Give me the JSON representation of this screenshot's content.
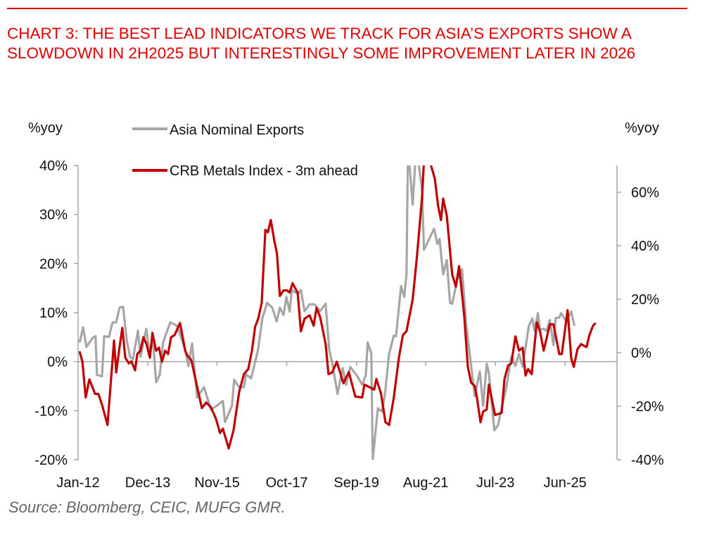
{
  "chart_data": {
    "type": "line",
    "title": "CHART 3: THE BEST LEAD INDICATORS WE TRACK FOR ASIA’S EXPORTS SHOW A SLOWDOWN IN 2H2025 BUT INTERESTINGLY SOME IMPROVEMENT LATER IN 2026",
    "source": "Source: Bloomberg, CEIC, MUFG GMR.",
    "ylabel_left": "%yoy",
    "ylabel_right": "%yoy",
    "ylim_left": [
      -20,
      40
    ],
    "ylim_right": [
      -40,
      70
    ],
    "yticks_left": [
      {
        "v": 40,
        "label": "40%"
      },
      {
        "v": 30,
        "label": "30%"
      },
      {
        "v": 20,
        "label": "20%"
      },
      {
        "v": 10,
        "label": "10%"
      },
      {
        "v": 0,
        "label": "0%"
      },
      {
        "v": -10,
        "label": "-10%"
      },
      {
        "v": -20,
        "label": "-20%"
      }
    ],
    "yticks_right": [
      {
        "v": 60,
        "label": "60%"
      },
      {
        "v": 40,
        "label": "40%"
      },
      {
        "v": 20,
        "label": "20%"
      },
      {
        "v": 0,
        "label": "0%"
      },
      {
        "v": -20,
        "label": "-20%"
      },
      {
        "v": -40,
        "label": "-40%"
      }
    ],
    "xlim": [
      2012.0,
      2026.85
    ],
    "xticks": [
      {
        "v": 2012.0,
        "label": "Jan-12"
      },
      {
        "v": 2013.92,
        "label": "Dec-13"
      },
      {
        "v": 2015.83,
        "label": "Nov-15"
      },
      {
        "v": 2017.75,
        "label": "Oct-17"
      },
      {
        "v": 2019.67,
        "label": "Sep-19"
      },
      {
        "v": 2021.58,
        "label": "Aug-21"
      },
      {
        "v": 2023.5,
        "label": "Jul-23"
      },
      {
        "v": 2025.42,
        "label": "Jun-25"
      }
    ],
    "legend_position": "top-left",
    "colors": {
      "gray": "#A6A6A6",
      "red": "#C00000"
    },
    "series": [
      {
        "name": "Asia Nominal Exports",
        "axis": "left",
        "color": "#A6A6A6",
        "points": [
          [
            2012.04,
            3.9
          ],
          [
            2012.14,
            7.0
          ],
          [
            2012.23,
            3.0
          ],
          [
            2012.41,
            4.9
          ],
          [
            2012.48,
            5.2
          ],
          [
            2012.52,
            -2.7
          ],
          [
            2012.66,
            -3.0
          ],
          [
            2012.72,
            5.2
          ],
          [
            2012.85,
            5.0
          ],
          [
            2012.95,
            8.0
          ],
          [
            2013.05,
            8.0
          ],
          [
            2013.14,
            11.0
          ],
          [
            2013.24,
            11.2
          ],
          [
            2013.34,
            4.4
          ],
          [
            2013.43,
            1.0
          ],
          [
            2013.51,
            0.5
          ],
          [
            2013.65,
            6.3
          ],
          [
            2013.72,
            1.0
          ],
          [
            2013.88,
            6.7
          ],
          [
            2013.98,
            1.0
          ],
          [
            2014.05,
            5.9
          ],
          [
            2014.15,
            -4.2
          ],
          [
            2014.25,
            -2.7
          ],
          [
            2014.34,
            3.9
          ],
          [
            2014.54,
            8.0
          ],
          [
            2014.73,
            7.3
          ],
          [
            2014.95,
            2.4
          ],
          [
            2015.04,
            -0.9
          ],
          [
            2015.14,
            3.7
          ],
          [
            2015.28,
            -7.3
          ],
          [
            2015.47,
            -5.2
          ],
          [
            2015.66,
            -9.8
          ],
          [
            2015.82,
            -9.0
          ],
          [
            2015.99,
            -8.0
          ],
          [
            2016.05,
            -12.3
          ],
          [
            2016.24,
            -9.0
          ],
          [
            2016.3,
            -3.7
          ],
          [
            2016.44,
            -5.2
          ],
          [
            2016.57,
            -5.2
          ],
          [
            2016.63,
            -2.6
          ],
          [
            2016.77,
            -3.4
          ],
          [
            2016.96,
            2.4
          ],
          [
            2017.08,
            8.9
          ],
          [
            2017.21,
            12.0
          ],
          [
            2017.35,
            11.0
          ],
          [
            2017.47,
            8.2
          ],
          [
            2017.56,
            11.0
          ],
          [
            2017.66,
            9.5
          ],
          [
            2017.74,
            13.2
          ],
          [
            2017.83,
            10.2
          ],
          [
            2017.89,
            14.6
          ],
          [
            2018.05,
            13.8
          ],
          [
            2018.14,
            14.6
          ],
          [
            2018.24,
            10.3
          ],
          [
            2018.38,
            11.7
          ],
          [
            2018.51,
            11.7
          ],
          [
            2018.67,
            10.3
          ],
          [
            2018.82,
            11.8
          ],
          [
            2018.92,
            2.4
          ],
          [
            2019.02,
            -0.9
          ],
          [
            2019.15,
            -6.6
          ],
          [
            2019.29,
            -1.3
          ],
          [
            2019.38,
            -4.7
          ],
          [
            2019.5,
            -1.1
          ],
          [
            2019.67,
            -2.7
          ],
          [
            2019.83,
            -4.7
          ],
          [
            2019.93,
            -2.7
          ],
          [
            2019.98,
            3.9
          ],
          [
            2020.08,
            1.7
          ],
          [
            2020.12,
            -20.0
          ],
          [
            2020.26,
            -9.5
          ],
          [
            2020.37,
            -10.2
          ],
          [
            2020.45,
            -7.0
          ],
          [
            2020.57,
            1.6
          ],
          [
            2020.7,
            5.3
          ],
          [
            2020.76,
            5.2
          ],
          [
            2020.9,
            15.4
          ],
          [
            2020.99,
            13.2
          ],
          [
            2021.05,
            17.8
          ],
          [
            2021.09,
            44.0
          ],
          [
            2021.22,
            32.0
          ],
          [
            2021.32,
            44.0
          ],
          [
            2021.48,
            35.0
          ],
          [
            2021.53,
            22.8
          ],
          [
            2021.81,
            27.1
          ],
          [
            2021.9,
            24.0
          ],
          [
            2021.96,
            25.0
          ],
          [
            2022.06,
            17.8
          ],
          [
            2022.16,
            20.7
          ],
          [
            2022.25,
            12.0
          ],
          [
            2022.31,
            11.8
          ],
          [
            2022.45,
            16.8
          ],
          [
            2022.58,
            18.8
          ],
          [
            2022.7,
            7.3
          ],
          [
            2022.93,
            -7.0
          ],
          [
            2023.07,
            -2.0
          ],
          [
            2023.16,
            -9.0
          ],
          [
            2023.26,
            -0.4
          ],
          [
            2023.32,
            -2.3
          ],
          [
            2023.47,
            -14.0
          ],
          [
            2023.57,
            -13.0
          ],
          [
            2023.8,
            -5.2
          ],
          [
            2023.94,
            1.0
          ],
          [
            2024.05,
            -0.9
          ],
          [
            2024.15,
            1.6
          ],
          [
            2024.25,
            -1.0
          ],
          [
            2024.42,
            7.3
          ],
          [
            2024.52,
            8.8
          ],
          [
            2024.58,
            6.3
          ],
          [
            2024.67,
            9.9
          ],
          [
            2024.73,
            6.5
          ],
          [
            2024.83,
            6.7
          ],
          [
            2024.91,
            6.3
          ],
          [
            2025.0,
            8.5
          ],
          [
            2025.1,
            3.4
          ],
          [
            2025.16,
            8.9
          ],
          [
            2025.26,
            9.0
          ],
          [
            2025.31,
            9.9
          ],
          [
            2025.45,
            8.2
          ],
          [
            2025.59,
            10.2
          ],
          [
            2025.68,
            7.3
          ]
        ]
      },
      {
        "name": "CRB Metals Index - 3m ahead",
        "axis": "right",
        "color": "#C00000",
        "points": [
          [
            2012.04,
            0.5
          ],
          [
            2012.12,
            -3.4
          ],
          [
            2012.21,
            -16.7
          ],
          [
            2012.31,
            -10.0
          ],
          [
            2012.47,
            -15.4
          ],
          [
            2012.56,
            -15.4
          ],
          [
            2012.66,
            -19.4
          ],
          [
            2012.81,
            -27.0
          ],
          [
            2012.99,
            4.5
          ],
          [
            2013.05,
            -7.4
          ],
          [
            2013.14,
            1.9
          ],
          [
            2013.22,
            9.3
          ],
          [
            2013.3,
            -1.9
          ],
          [
            2013.4,
            -4.0
          ],
          [
            2013.47,
            -3.2
          ],
          [
            2013.57,
            -6.6
          ],
          [
            2013.63,
            -0.5
          ],
          [
            2013.72,
            0.8
          ],
          [
            2013.8,
            5.8
          ],
          [
            2013.88,
            3.5
          ],
          [
            2013.98,
            -1.9
          ],
          [
            2014.05,
            7.4
          ],
          [
            2014.15,
            0.8
          ],
          [
            2014.23,
            1.9
          ],
          [
            2014.31,
            -3.4
          ],
          [
            2014.4,
            0.8
          ],
          [
            2014.48,
            -0.5
          ],
          [
            2014.56,
            5.8
          ],
          [
            2014.66,
            6.6
          ],
          [
            2014.81,
            11.1
          ],
          [
            2014.95,
            0.8
          ],
          [
            2015.02,
            -1.3
          ],
          [
            2015.12,
            -2.7
          ],
          [
            2015.28,
            -12.7
          ],
          [
            2015.41,
            -20.7
          ],
          [
            2015.53,
            -18.6
          ],
          [
            2015.66,
            -20.4
          ],
          [
            2015.8,
            -24.7
          ],
          [
            2015.91,
            -30.0
          ],
          [
            2015.99,
            -28.4
          ],
          [
            2016.15,
            -35.8
          ],
          [
            2016.28,
            -29.2
          ],
          [
            2016.44,
            -14.6
          ],
          [
            2016.57,
            -8.0
          ],
          [
            2016.69,
            -6.1
          ],
          [
            2016.79,
            0.8
          ],
          [
            2016.88,
            9.8
          ],
          [
            2016.96,
            12.5
          ],
          [
            2017.06,
            18.6
          ],
          [
            2017.16,
            45.9
          ],
          [
            2017.23,
            45.0
          ],
          [
            2017.31,
            49.6
          ],
          [
            2017.41,
            41.6
          ],
          [
            2017.48,
            37.1
          ],
          [
            2017.56,
            21.2
          ],
          [
            2017.66,
            23.3
          ],
          [
            2017.76,
            23.3
          ],
          [
            2017.83,
            22.5
          ],
          [
            2017.91,
            26.0
          ],
          [
            2017.99,
            23.9
          ],
          [
            2018.05,
            22.5
          ],
          [
            2018.14,
            8.0
          ],
          [
            2018.24,
            12.7
          ],
          [
            2018.38,
            14.0
          ],
          [
            2018.49,
            10.1
          ],
          [
            2018.57,
            16.7
          ],
          [
            2018.67,
            13.3
          ],
          [
            2018.82,
            3.4
          ],
          [
            2018.9,
            -8.0
          ],
          [
            2019.0,
            -7.4
          ],
          [
            2019.13,
            -3.4
          ],
          [
            2019.31,
            -11.4
          ],
          [
            2019.46,
            -7.2
          ],
          [
            2019.64,
            -16.4
          ],
          [
            2019.83,
            -16.7
          ],
          [
            2019.89,
            -11.9
          ],
          [
            2020.16,
            -13.8
          ],
          [
            2020.22,
            -9.8
          ],
          [
            2020.35,
            -15.4
          ],
          [
            2020.47,
            -26.0
          ],
          [
            2020.57,
            -27.0
          ],
          [
            2020.7,
            -16.7
          ],
          [
            2020.84,
            -1.9
          ],
          [
            2020.95,
            6.6
          ],
          [
            2021.05,
            8.0
          ],
          [
            2021.22,
            19.9
          ],
          [
            2021.34,
            36.3
          ],
          [
            2021.48,
            58.4
          ],
          [
            2021.53,
            71.6
          ],
          [
            2021.62,
            75.0
          ],
          [
            2021.73,
            69.8
          ],
          [
            2021.83,
            65.0
          ],
          [
            2021.92,
            54.9
          ],
          [
            2022.0,
            49.6
          ],
          [
            2022.06,
            57.6
          ],
          [
            2022.16,
            51.2
          ],
          [
            2022.31,
            29.2
          ],
          [
            2022.41,
            24.7
          ],
          [
            2022.5,
            32.4
          ],
          [
            2022.64,
            14.0
          ],
          [
            2022.74,
            -5.3
          ],
          [
            2022.83,
            -11.1
          ],
          [
            2022.93,
            -12.5
          ],
          [
            2022.99,
            -16.7
          ],
          [
            2023.09,
            -26.0
          ],
          [
            2023.16,
            -22.0
          ],
          [
            2023.26,
            -21.2
          ],
          [
            2023.32,
            -11.9
          ],
          [
            2023.49,
            -23.3
          ],
          [
            2023.67,
            -22.5
          ],
          [
            2023.75,
            -9.8
          ],
          [
            2023.85,
            -4.8
          ],
          [
            2023.94,
            -4.0
          ],
          [
            2024.05,
            6.1
          ],
          [
            2024.15,
            0.8
          ],
          [
            2024.25,
            1.9
          ],
          [
            2024.33,
            -8.5
          ],
          [
            2024.4,
            -6.1
          ],
          [
            2024.5,
            -8.0
          ],
          [
            2024.64,
            11.4
          ],
          [
            2024.73,
            8.0
          ],
          [
            2024.83,
            0.8
          ],
          [
            2025.0,
            10.6
          ],
          [
            2025.1,
            10.6
          ],
          [
            2025.26,
            -0.5
          ],
          [
            2025.33,
            -0.5
          ],
          [
            2025.49,
            15.9
          ],
          [
            2025.59,
            -2.1
          ],
          [
            2025.66,
            -5.3
          ],
          [
            2025.76,
            1.3
          ],
          [
            2025.86,
            3.2
          ],
          [
            2026.01,
            2.1
          ],
          [
            2026.09,
            6.6
          ],
          [
            2026.19,
            10.1
          ],
          [
            2026.26,
            11.1
          ]
        ]
      }
    ]
  }
}
